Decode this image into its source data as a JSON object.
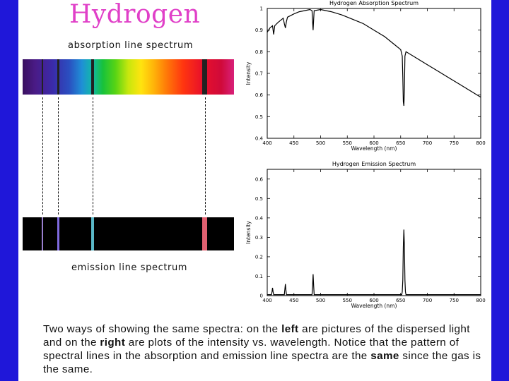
{
  "title": "Hydrogen",
  "absorption_label": "absorption line spectrum",
  "emission_label": "emission line spectrum",
  "caption": {
    "p1": "Two ways of showing the same spectra: on the ",
    "b1": "left",
    "p2": " are pictures of the dispersed light and on the ",
    "b2": "right",
    "p3": " are plots of the intensity vs. wavelength. Notice that the pattern of spectral lines in the absorption and emission line spectra are the ",
    "b3": "same",
    "p4": " since the gas is the same."
  },
  "colors": {
    "background": "#1f17d9",
    "title": "#e040c8",
    "emission_line_410": "#9a7fd0",
    "emission_line_434": "#7f6ae0",
    "emission_line_486": "#5ab8c8",
    "emission_line_656": "#e06070"
  },
  "spectrum_strip": {
    "wavelength_range_nm": [
      380,
      700
    ],
    "line_wavelengths_nm": [
      410,
      434,
      486,
      656
    ]
  },
  "chart_data": [
    {
      "type": "line",
      "title": "Hydrogen Absorption Spectrum",
      "xlabel": "Wavelength (nm)",
      "ylabel": "Intensity",
      "xlim": [
        400,
        800
      ],
      "ylim": [
        0.4,
        1.0
      ],
      "xticks": [
        400,
        450,
        500,
        550,
        600,
        650,
        700,
        750,
        800
      ],
      "yticks": [
        0.4,
        0.5,
        0.6,
        0.7,
        0.8,
        0.9,
        1
      ],
      "xtick_labels": [
        "400",
        "450",
        "500",
        "550",
        "600",
        "650",
        "700",
        "750",
        "800"
      ],
      "ytick_labels": [
        "0.4",
        "0.5",
        "0.6",
        "0.7",
        "0.8",
        "0.9",
        "1"
      ],
      "x": [
        400,
        405,
        410,
        412,
        414,
        420,
        430,
        432,
        434,
        436,
        438,
        450,
        460,
        470,
        480,
        484,
        485,
        486,
        487,
        488,
        500,
        520,
        540,
        560,
        580,
        600,
        620,
        640,
        650,
        653,
        654,
        655,
        656,
        657,
        658,
        660,
        680,
        700,
        720,
        740,
        760,
        780,
        800
      ],
      "y": [
        0.89,
        0.91,
        0.92,
        0.88,
        0.92,
        0.935,
        0.955,
        0.93,
        0.91,
        0.94,
        0.96,
        0.975,
        0.985,
        0.99,
        0.995,
        0.99,
        0.94,
        0.9,
        0.95,
        0.99,
        0.995,
        0.985,
        0.97,
        0.95,
        0.93,
        0.9,
        0.87,
        0.83,
        0.81,
        0.78,
        0.68,
        0.57,
        0.55,
        0.62,
        0.78,
        0.8,
        0.77,
        0.74,
        0.71,
        0.68,
        0.65,
        0.62,
        0.59
      ]
    },
    {
      "type": "line",
      "title": "Hydrogen Emission Spectrum",
      "xlabel": "Wavelength (nm)",
      "ylabel": "Intensity",
      "xlim": [
        400,
        800
      ],
      "ylim": [
        0,
        0.65
      ],
      "xticks": [
        400,
        450,
        500,
        550,
        600,
        650,
        700,
        750,
        800
      ],
      "yticks": [
        0,
        0.1,
        0.2,
        0.3,
        0.4,
        0.5,
        0.6
      ],
      "xtick_labels": [
        "400",
        "450",
        "500",
        "550",
        "600",
        "650",
        "700",
        "750",
        "800"
      ],
      "ytick_labels": [
        "0",
        "0.1",
        "0.2",
        "0.3",
        "0.4",
        "0.5",
        "0.6"
      ],
      "x": [
        400,
        408,
        409,
        410,
        411,
        412,
        432,
        433,
        434,
        435,
        436,
        484,
        485,
        486,
        487,
        488,
        652,
        653,
        654,
        655,
        656,
        657,
        658,
        659,
        660,
        700,
        800
      ],
      "y": [
        0.005,
        0.005,
        0.02,
        0.04,
        0.02,
        0.005,
        0.005,
        0.03,
        0.06,
        0.03,
        0.005,
        0.005,
        0.05,
        0.11,
        0.05,
        0.005,
        0.005,
        0.02,
        0.08,
        0.25,
        0.34,
        0.26,
        0.08,
        0.02,
        0.005,
        0.005,
        0.005
      ]
    }
  ]
}
